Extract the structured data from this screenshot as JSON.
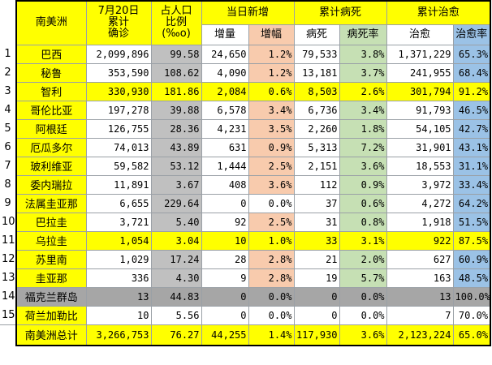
{
  "header": {
    "region": "南美洲",
    "confirmed": [
      "7月20日",
      "累计",
      "确诊"
    ],
    "ratio": [
      "占人口",
      "比例",
      "(‰o)"
    ],
    "daily_new": "当日新增",
    "daily_increase": "增量",
    "daily_rate": "增幅",
    "cum_deaths": "累计病死",
    "deaths": "病死",
    "death_rate": "病死率",
    "cum_recovered": "累计治愈",
    "recovered": "治愈",
    "recovery_rate": "治愈率"
  },
  "rows": [
    {
      "idx": "1",
      "country": "巴西",
      "confirmed": "2,099,896",
      "ratio": "99.58",
      "inc": "24,650",
      "inc_rate": "1.2%",
      "deaths": "79,533",
      "death_rate": "3.8%",
      "recovered": "1,371,229",
      "rec_rate": "65.3%",
      "country_color": "#ffff00",
      "confirmed_color": "#ffffff",
      "ratio_color": "#c0c0c0",
      "inc_color": "#ffffff",
      "inc_rate_color": "#f8cbad",
      "deaths_color": "#ffffff",
      "death_rate_color": "#c6e0b4",
      "rec_color": "#ffffff",
      "rec_rate_color": "#9bc2e6"
    },
    {
      "idx": "2",
      "country": "秘鲁",
      "confirmed": "353,590",
      "ratio": "108.62",
      "inc": "4,090",
      "inc_rate": "1.2%",
      "deaths": "13,181",
      "death_rate": "3.7%",
      "recovered": "241,955",
      "rec_rate": "68.4%",
      "country_color": "#ffff00",
      "confirmed_color": "#ffffff",
      "ratio_color": "#c0c0c0",
      "inc_color": "#ffffff",
      "inc_rate_color": "#f8cbad",
      "deaths_color": "#ffffff",
      "death_rate_color": "#c6e0b4",
      "rec_color": "#ffffff",
      "rec_rate_color": "#9bc2e6"
    },
    {
      "idx": "3",
      "country": "智利",
      "confirmed": "330,930",
      "ratio": "181.86",
      "inc": "2,084",
      "inc_rate": "0.6%",
      "deaths": "8,503",
      "death_rate": "2.6%",
      "recovered": "301,794",
      "rec_rate": "91.2%",
      "country_color": "#ffff00",
      "confirmed_color": "#ffff00",
      "ratio_color": "#ffff00",
      "inc_color": "#ffff00",
      "inc_rate_color": "#ffff00",
      "deaths_color": "#ffff00",
      "death_rate_color": "#ffff00",
      "rec_color": "#ffff00",
      "rec_rate_color": "#ffff00"
    },
    {
      "idx": "4",
      "country": "哥伦比亚",
      "confirmed": "197,278",
      "ratio": "39.88",
      "inc": "6,578",
      "inc_rate": "3.4%",
      "deaths": "6,736",
      "death_rate": "3.4%",
      "recovered": "91,793",
      "rec_rate": "46.5%",
      "country_color": "#ffff00",
      "confirmed_color": "#ffffff",
      "ratio_color": "#c0c0c0",
      "inc_color": "#ffffff",
      "inc_rate_color": "#f8cbad",
      "deaths_color": "#ffffff",
      "death_rate_color": "#c6e0b4",
      "rec_color": "#ffffff",
      "rec_rate_color": "#9bc2e6"
    },
    {
      "idx": "5",
      "country": "阿根廷",
      "confirmed": "126,755",
      "ratio": "28.36",
      "inc": "4,231",
      "inc_rate": "3.5%",
      "deaths": "2,260",
      "death_rate": "1.8%",
      "recovered": "54,105",
      "rec_rate": "42.7%",
      "country_color": "#ffff00",
      "confirmed_color": "#ffffff",
      "ratio_color": "#c0c0c0",
      "inc_color": "#ffffff",
      "inc_rate_color": "#f8cbad",
      "deaths_color": "#ffffff",
      "death_rate_color": "#c6e0b4",
      "rec_color": "#ffffff",
      "rec_rate_color": "#9bc2e6"
    },
    {
      "idx": "6",
      "country": "厄瓜多尔",
      "confirmed": "74,013",
      "ratio": "43.89",
      "inc": "631",
      "inc_rate": "0.9%",
      "deaths": "5,313",
      "death_rate": "7.2%",
      "recovered": "31,901",
      "rec_rate": "43.1%",
      "country_color": "#ffff00",
      "confirmed_color": "#ffffff",
      "ratio_color": "#c0c0c0",
      "inc_color": "#ffffff",
      "inc_rate_color": "#f8cbad",
      "deaths_color": "#ffffff",
      "death_rate_color": "#c6e0b4",
      "rec_color": "#ffffff",
      "rec_rate_color": "#9bc2e6"
    },
    {
      "idx": "7",
      "country": "玻利维亚",
      "confirmed": "59,582",
      "ratio": "53.12",
      "inc": "1,444",
      "inc_rate": "2.5%",
      "deaths": "2,151",
      "death_rate": "3.6%",
      "recovered": "18,553",
      "rec_rate": "31.1%",
      "country_color": "#ffff00",
      "confirmed_color": "#ffffff",
      "ratio_color": "#c0c0c0",
      "inc_color": "#ffffff",
      "inc_rate_color": "#f8cbad",
      "deaths_color": "#ffffff",
      "death_rate_color": "#c6e0b4",
      "rec_color": "#ffffff",
      "rec_rate_color": "#9bc2e6"
    },
    {
      "idx": "8",
      "country": "委内瑞拉",
      "confirmed": "11,891",
      "ratio": "3.67",
      "inc": "408",
      "inc_rate": "3.6%",
      "deaths": "112",
      "death_rate": "0.9%",
      "recovered": "3,972",
      "rec_rate": "33.4%",
      "country_color": "#ffff00",
      "confirmed_color": "#ffffff",
      "ratio_color": "#c0c0c0",
      "inc_color": "#ffffff",
      "inc_rate_color": "#f8cbad",
      "deaths_color": "#ffffff",
      "death_rate_color": "#c6e0b4",
      "rec_color": "#ffffff",
      "rec_rate_color": "#9bc2e6"
    },
    {
      "idx": "9",
      "country": "法属圭亚那",
      "confirmed": "6,655",
      "ratio": "229.64",
      "inc": "0",
      "inc_rate": "0.0%",
      "deaths": "37",
      "death_rate": "0.6%",
      "recovered": "4,272",
      "rec_rate": "64.2%",
      "country_color": "#ffff00",
      "confirmed_color": "#ffffff",
      "ratio_color": "#c0c0c0",
      "inc_color": "#ffffff",
      "inc_rate_color": "#ffffff",
      "deaths_color": "#ffffff",
      "death_rate_color": "#c6e0b4",
      "rec_color": "#ffffff",
      "rec_rate_color": "#9bc2e6"
    },
    {
      "idx": "10",
      "country": "巴拉圭",
      "confirmed": "3,721",
      "ratio": "5.40",
      "inc": "92",
      "inc_rate": "2.5%",
      "deaths": "31",
      "death_rate": "0.8%",
      "recovered": "1,918",
      "rec_rate": "51.5%",
      "country_color": "#ffff00",
      "confirmed_color": "#ffffff",
      "ratio_color": "#c0c0c0",
      "inc_color": "#ffffff",
      "inc_rate_color": "#f8cbad",
      "deaths_color": "#ffffff",
      "death_rate_color": "#c6e0b4",
      "rec_color": "#ffffff",
      "rec_rate_color": "#9bc2e6"
    },
    {
      "idx": "11",
      "country": "乌拉圭",
      "confirmed": "1,054",
      "ratio": "3.04",
      "inc": "10",
      "inc_rate": "1.0%",
      "deaths": "33",
      "death_rate": "3.1%",
      "recovered": "922",
      "rec_rate": "87.5%",
      "country_color": "#ffff00",
      "confirmed_color": "#ffff00",
      "ratio_color": "#ffff00",
      "inc_color": "#ffff00",
      "inc_rate_color": "#ffff00",
      "deaths_color": "#ffff00",
      "death_rate_color": "#ffff00",
      "rec_color": "#ffff00",
      "rec_rate_color": "#ffff00"
    },
    {
      "idx": "12",
      "country": "苏里南",
      "confirmed": "1,029",
      "ratio": "17.24",
      "inc": "28",
      "inc_rate": "2.8%",
      "deaths": "21",
      "death_rate": "2.0%",
      "recovered": "627",
      "rec_rate": "60.9%",
      "country_color": "#ffff00",
      "confirmed_color": "#ffffff",
      "ratio_color": "#c0c0c0",
      "inc_color": "#ffffff",
      "inc_rate_color": "#f8cbad",
      "deaths_color": "#ffffff",
      "death_rate_color": "#c6e0b4",
      "rec_color": "#ffffff",
      "rec_rate_color": "#9bc2e6"
    },
    {
      "idx": "13",
      "country": "圭亚那",
      "confirmed": "336",
      "ratio": "4.30",
      "inc": "9",
      "inc_rate": "2.8%",
      "deaths": "19",
      "death_rate": "5.7%",
      "recovered": "163",
      "rec_rate": "48.5%",
      "country_color": "#ffff00",
      "confirmed_color": "#ffffff",
      "ratio_color": "#c0c0c0",
      "inc_color": "#ffffff",
      "inc_rate_color": "#f8cbad",
      "deaths_color": "#ffffff",
      "death_rate_color": "#c6e0b4",
      "rec_color": "#ffffff",
      "rec_rate_color": "#9bc2e6"
    },
    {
      "idx": "14",
      "country": "福克兰群岛",
      "confirmed": "13",
      "ratio": "44.83",
      "inc": "0",
      "inc_rate": "0.0%",
      "deaths": "0",
      "death_rate": "0.0%",
      "recovered": "13",
      "rec_rate": "100.0%",
      "country_color": "#a6a6a6",
      "confirmed_color": "#a6a6a6",
      "ratio_color": "#a6a6a6",
      "inc_color": "#a6a6a6",
      "inc_rate_color": "#a6a6a6",
      "deaths_color": "#a6a6a6",
      "death_rate_color": "#a6a6a6",
      "rec_color": "#a6a6a6",
      "rec_rate_color": "#a6a6a6"
    },
    {
      "idx": "15",
      "country": "荷兰加勒比",
      "confirmed": "10",
      "ratio": "5.56",
      "inc": "0",
      "inc_rate": "0.0%",
      "deaths": "0",
      "death_rate": "0.0%",
      "recovered": "7",
      "rec_rate": "70.0%",
      "country_color": "#ffff00",
      "confirmed_color": "#ffffff",
      "ratio_color": "#ffffff",
      "inc_color": "#ffffff",
      "inc_rate_color": "#ffffff",
      "deaths_color": "#ffffff",
      "death_rate_color": "#ffffff",
      "rec_color": "#ffffff",
      "rec_rate_color": "#ffffff"
    }
  ],
  "total": {
    "country": "南美洲总计",
    "confirmed": "3,266,753",
    "ratio": "76.27",
    "inc": "44,255",
    "inc_rate": "1.4%",
    "deaths": "117,930",
    "death_rate": "3.6%",
    "recovered": "2,123,224",
    "rec_rate": "65.0%"
  }
}
